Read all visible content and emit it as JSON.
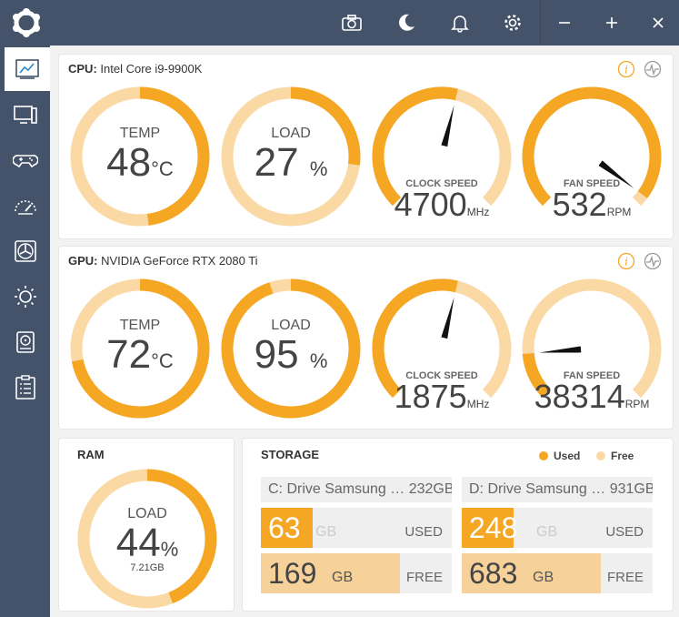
{
  "titlebar": {
    "icons": [
      "app-logo",
      "camera-icon",
      "moon-icon",
      "bell-icon",
      "gear-icon",
      "minimize-icon",
      "maximize-icon",
      "close-icon"
    ]
  },
  "sidebar": {
    "items": [
      "dashboard-icon",
      "monitor-icon",
      "gamepad-icon",
      "speedometer-icon",
      "fan-icon",
      "brightness-icon",
      "storage-icon",
      "checklist-icon"
    ]
  },
  "cpu": {
    "title_prefix": "CPU:",
    "title_name": "Intel Core i9-9900K",
    "temp": {
      "label": "TEMP",
      "value": "48",
      "unit": "°C",
      "fraction": 0.48
    },
    "load": {
      "label": "LOAD",
      "value": "27",
      "unit": "%",
      "fraction": 0.27
    },
    "clock": {
      "label": "CLOCK SPEED",
      "value": "4700",
      "unit": "MHz",
      "fraction": 0.55
    },
    "fan": {
      "label": "FAN SPEED",
      "value": "532",
      "unit": "RPM",
      "fraction": 0.97
    }
  },
  "gpu": {
    "title_prefix": "GPU:",
    "title_name": "NVIDIA GeForce RTX 2080 Ti",
    "temp": {
      "label": "TEMP",
      "value": "72",
      "unit": "°C",
      "fraction": 0.72
    },
    "load": {
      "label": "LOAD",
      "value": "95",
      "unit": "%",
      "fraction": 0.95
    },
    "clock": {
      "label": "CLOCK SPEED",
      "value": "1875",
      "unit": "MHz",
      "fraction": 0.55
    },
    "fan": {
      "label": "FAN SPEED",
      "value": "38314",
      "unit": "RPM",
      "fraction": 0.15
    }
  },
  "ram": {
    "title": "RAM",
    "label": "LOAD",
    "value": "44",
    "unit": "%",
    "sub": "7.21GB",
    "fraction": 0.44
  },
  "storage": {
    "title": "STORAGE",
    "legend_used": "Used",
    "legend_free": "Free",
    "drives": [
      {
        "name": "C: Drive Samsung … 232GB",
        "used": "63",
        "free": "169",
        "unit": "GB",
        "used_tag": "USED",
        "free_tag": "FREE",
        "used_fraction": 0.27,
        "free_fraction": 0.73
      },
      {
        "name": "D: Drive Samsung … 931GB",
        "used": "248",
        "free": "683",
        "unit": "GB",
        "used_tag": "USED",
        "free_tag": "FREE",
        "used_fraction": 0.27,
        "free_fraction": 0.73
      }
    ]
  },
  "colors": {
    "accent": "#f5a623",
    "track": "#fad9a5",
    "sidebar": "#44536a",
    "free_fill": "#f6d29a"
  }
}
